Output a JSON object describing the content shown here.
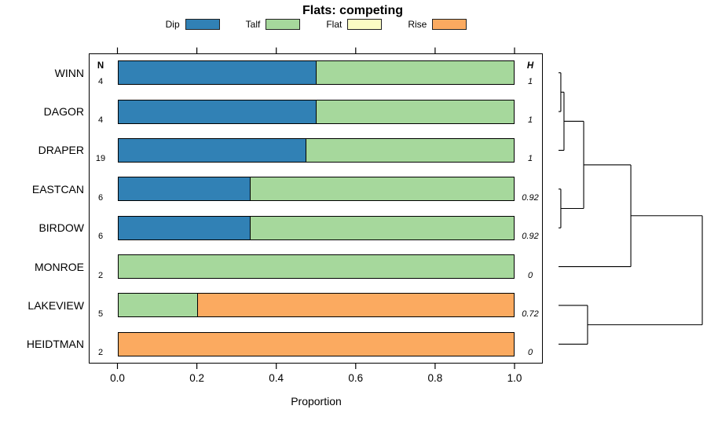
{
  "title": "Flats: competing",
  "chart_data": {
    "type": "bar",
    "orientation": "horizontal-stacked",
    "title": "Flats: competing",
    "xlabel": "Proportion",
    "xlim": [
      0,
      1
    ],
    "x_ticks": [
      "0.0",
      "0.2",
      "0.4",
      "0.6",
      "0.8",
      "1.0"
    ],
    "grid": false,
    "legend_position": "top",
    "categories": [
      "WINN",
      "DAGOR",
      "DRAPER",
      "EASTCAN",
      "BIRDOW",
      "MONROE",
      "LAKEVIEW",
      "HEIDTMAN"
    ],
    "legend": [
      {
        "name": "Dip",
        "color": "#3181b5"
      },
      {
        "name": "Talf",
        "color": "#a6d89c"
      },
      {
        "name": "Flat",
        "color": "#fbfcc4"
      },
      {
        "name": "Rise",
        "color": "#fbaa60"
      }
    ],
    "series": [
      {
        "name": "Dip",
        "values": [
          0.5,
          0.5,
          0.474,
          0.333,
          0.333,
          0,
          0,
          0
        ]
      },
      {
        "name": "Talf",
        "values": [
          0.5,
          0.5,
          0.526,
          0.667,
          0.667,
          1,
          0.2,
          0
        ]
      },
      {
        "name": "Flat",
        "values": [
          0,
          0,
          0,
          0,
          0,
          0,
          0,
          0
        ]
      },
      {
        "name": "Rise",
        "values": [
          0,
          0,
          0,
          0,
          0,
          0,
          0.8,
          1
        ]
      }
    ],
    "n_header": "N",
    "n_values": [
      "4",
      "4",
      "19",
      "6",
      "6",
      "2",
      "5",
      "2"
    ],
    "h_header": "H",
    "h_values": [
      "1",
      "1",
      "1",
      "0.92",
      "0.92",
      "0",
      "0.72",
      "0"
    ],
    "dendrogram": {
      "side": "right",
      "leaves": [
        "WINN",
        "DAGOR",
        "DRAPER",
        "EASTCAN",
        "BIRDOW",
        "MONROE",
        "LAKEVIEW",
        "HEIDTMAN"
      ],
      "merges": [
        {
          "id": "c1",
          "children": [
            "WINN",
            "DAGOR"
          ],
          "height": 0.016
        },
        {
          "id": "c2",
          "children": [
            "c1",
            "DRAPER"
          ],
          "height": 0.038
        },
        {
          "id": "c3",
          "children": [
            "EASTCAN",
            "BIRDOW"
          ],
          "height": 0.016
        },
        {
          "id": "c4",
          "children": [
            "c2",
            "c3"
          ],
          "height": 0.175
        },
        {
          "id": "c5",
          "children": [
            "c4",
            "MONROE"
          ],
          "height": 0.503
        },
        {
          "id": "c6",
          "children": [
            "LAKEVIEW",
            "HEIDTMAN"
          ],
          "height": 0.202
        },
        {
          "id": "root",
          "children": [
            "c5",
            "c6"
          ],
          "height": 1.0
        }
      ]
    }
  }
}
